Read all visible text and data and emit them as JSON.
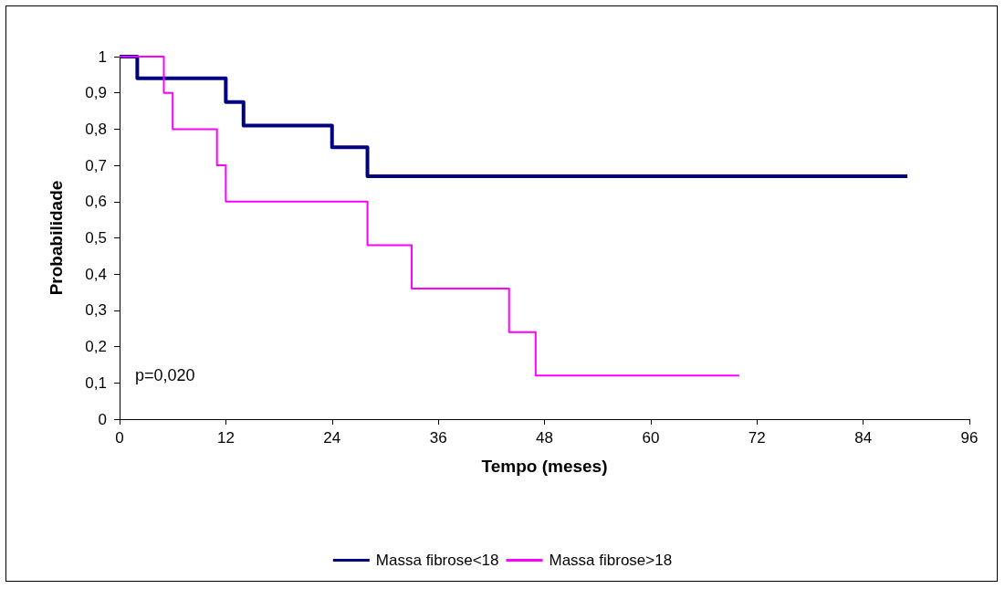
{
  "chart_data": {
    "type": "step",
    "xlabel": "Tempo (meses)",
    "ylabel": "Probabilidade",
    "annotations": [
      "p=0,020"
    ],
    "series": [
      {
        "name": "Massa fibrose<18",
        "color": "#000080",
        "x": [
          0,
          2,
          12,
          14,
          24,
          28,
          89
        ],
        "values": [
          1,
          0.94,
          0.875,
          0.81,
          0.75,
          0.67,
          0.67
        ]
      },
      {
        "name": "Massa fibrose>18",
        "color": "#ff00ff",
        "x": [
          0,
          5,
          6,
          11,
          12,
          28,
          33,
          44,
          47,
          70
        ],
        "values": [
          1,
          0.9,
          0.8,
          0.7,
          0.6,
          0.48,
          0.36,
          0.24,
          0.12,
          0.12
        ]
      }
    ],
    "xlim": [
      0,
      96
    ],
    "xticks": [
      0,
      12,
      24,
      36,
      48,
      60,
      72,
      84,
      96
    ],
    "ylim": [
      0,
      1
    ],
    "yticks": [
      0,
      {
        "value": 0.1,
        "label": "0,1"
      },
      {
        "value": 0.2,
        "label": "0,2"
      },
      {
        "value": 0.3,
        "label": "0,3"
      },
      {
        "value": 0.4,
        "label": "0,4"
      },
      {
        "value": 0.5,
        "label": "0,5"
      },
      {
        "value": 0.6,
        "label": "0,6"
      },
      {
        "value": 0.7,
        "label": "0,7"
      },
      {
        "value": 0.8,
        "label": "0,8"
      },
      {
        "value": 0.9,
        "label": "0,9"
      },
      1
    ],
    "grid": false,
    "legend": "bottom",
    "marker": "none",
    "line_style": "solid"
  }
}
